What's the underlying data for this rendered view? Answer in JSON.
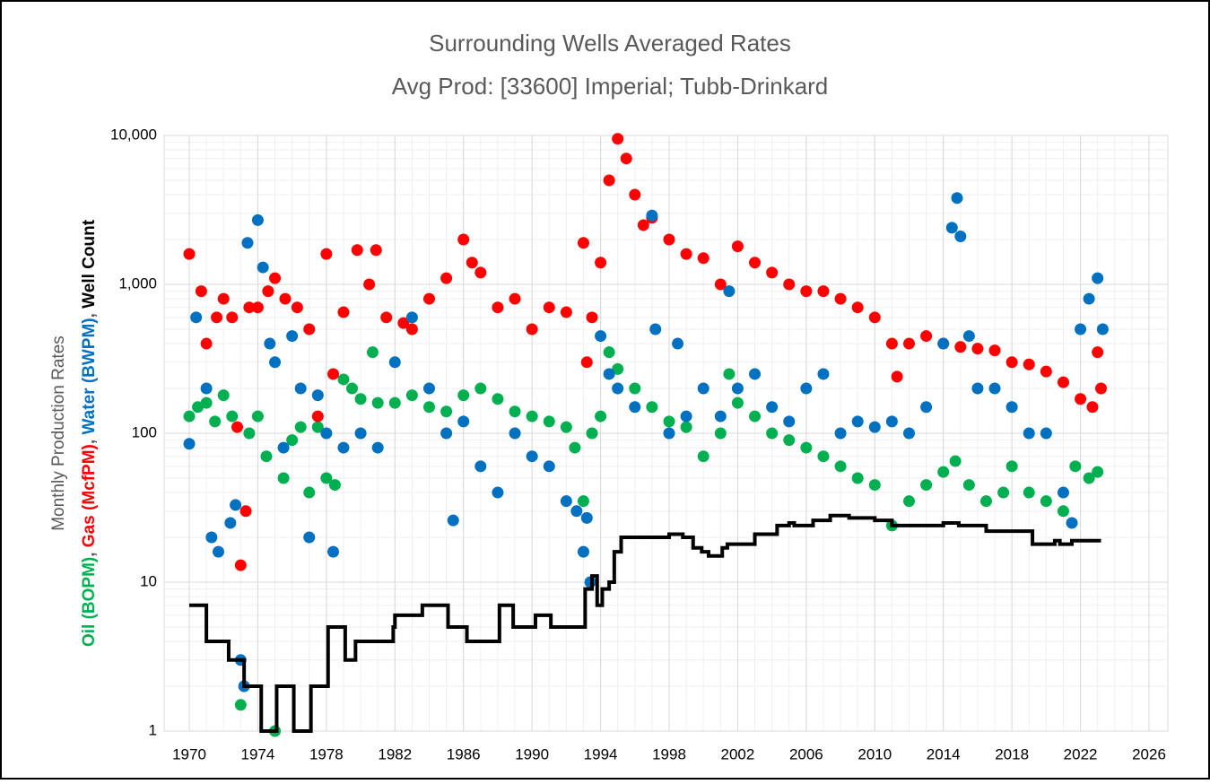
{
  "chart_data": {
    "type": "scatter",
    "title": "Surrounding Wells Averaged Rates",
    "subtitle": "Avg Prod: [33600] Imperial; Tubb-Drinkard",
    "y_label": "Monthly Production Rates",
    "y_label_separator": ", ",
    "xlim": [
      1970,
      2026
    ],
    "xticks": [
      1970,
      1974,
      1978,
      1982,
      1986,
      1990,
      1994,
      1998,
      2002,
      2006,
      2010,
      2014,
      2018,
      2022,
      2026
    ],
    "ylim": [
      1,
      10000
    ],
    "log_y": true,
    "grid": true,
    "yticks": [
      {
        "value": 1,
        "label": "1"
      },
      {
        "value": 10,
        "label": "10"
      },
      {
        "value": 100,
        "label": "100"
      },
      {
        "value": 1000,
        "label": "1,000"
      },
      {
        "value": 10000,
        "label": "10,000"
      }
    ],
    "series": [
      {
        "name": "Oil (BOPM)",
        "color": "#00b050",
        "mode": "markers",
        "x": [
          1970,
          1970.5,
          1971,
          1971.5,
          1972,
          1972.5,
          1973,
          1973.5,
          1974,
          1974.5,
          1975,
          1975.5,
          1976,
          1976.5,
          1977,
          1977.5,
          1978,
          1978.5,
          1979,
          1979.5,
          1980,
          1980.7,
          1981,
          1982,
          1983,
          1984,
          1985,
          1986,
          1987,
          1988,
          1989,
          1990,
          1991,
          1992,
          1992.5,
          1993,
          1993.5,
          1994,
          1994.5,
          1995,
          1996,
          1997,
          1998,
          1999,
          2000,
          2001,
          2001.5,
          2002,
          2003,
          2004,
          2005,
          2006,
          2007,
          2008,
          2009,
          2010,
          2011,
          2012,
          2013,
          2014,
          2014.7,
          2015.5,
          2016.5,
          2017.5,
          2018,
          2019,
          2020,
          2021,
          2021.7,
          2022.5,
          2023
        ],
        "values": [
          130,
          150,
          160,
          120,
          180,
          130,
          1.5,
          100,
          130,
          70,
          1,
          50,
          90,
          110,
          40,
          110,
          50,
          45,
          230,
          200,
          170,
          350,
          160,
          160,
          180,
          150,
          140,
          180,
          200,
          170,
          140,
          130,
          120,
          110,
          80,
          35,
          100,
          130,
          350,
          270,
          200,
          150,
          120,
          110,
          70,
          100,
          250,
          160,
          130,
          100,
          90,
          80,
          70,
          60,
          50,
          45,
          24,
          35,
          45,
          55,
          65,
          45,
          35,
          40,
          60,
          40,
          35,
          30,
          60,
          50,
          55
        ]
      },
      {
        "name": "Gas (McfPM)",
        "color": "#ff0000",
        "mode": "markers",
        "x": [
          1970,
          1970.7,
          1971,
          1971.6,
          1972,
          1972.5,
          1972.8,
          1973,
          1973.3,
          1973.5,
          1974,
          1974.6,
          1975,
          1975.6,
          1976.3,
          1977,
          1977.5,
          1978,
          1978.4,
          1979,
          1979.8,
          1980.5,
          1980.9,
          1981.5,
          1982.5,
          1983,
          1984,
          1985,
          1986,
          1986.5,
          1987,
          1988,
          1989,
          1990,
          1991,
          1992,
          1993,
          1993.2,
          1993.5,
          1994,
          1994.5,
          1995,
          1995.5,
          1996,
          1996.5,
          1997,
          1998,
          1999,
          2000,
          2001,
          2002,
          2003,
          2004,
          2005,
          2006,
          2007,
          2008,
          2009,
          2010,
          2011,
          2011.3,
          2012,
          2013,
          2014,
          2015,
          2016,
          2017,
          2018,
          2019,
          2020,
          2021,
          2022,
          2022.7,
          2023,
          2023.2
        ],
        "values": [
          1600,
          900,
          400,
          600,
          800,
          600,
          110,
          13,
          30,
          700,
          700,
          900,
          1100,
          800,
          700,
          500,
          130,
          1600,
          250,
          650,
          1700,
          1000,
          1700,
          600,
          550,
          500,
          800,
          1100,
          2000,
          1400,
          1200,
          700,
          800,
          500,
          700,
          650,
          1900,
          300,
          600,
          1400,
          5000,
          9500,
          7000,
          4000,
          2500,
          2800,
          2000,
          1600,
          1500,
          1000,
          1800,
          1400,
          1200,
          1000,
          900,
          900,
          800,
          700,
          600,
          400,
          240,
          400,
          450,
          400,
          380,
          370,
          360,
          300,
          290,
          260,
          220,
          170,
          150,
          350,
          200
        ]
      },
      {
        "name": "Water (BWPM)",
        "color": "#0070c0",
        "mode": "markers",
        "x": [
          1970,
          1970.4,
          1971,
          1971.3,
          1971.7,
          1972.4,
          1972.7,
          1973,
          1973.2,
          1973.4,
          1974,
          1974.3,
          1974.7,
          1975,
          1975.5,
          1976,
          1976.5,
          1977,
          1977.5,
          1978,
          1978.4,
          1979,
          1980,
          1981,
          1982,
          1983,
          1984,
          1985,
          1985.4,
          1986,
          1987,
          1988,
          1989,
          1990,
          1991,
          1992,
          1992.6,
          1993,
          1993.2,
          1993.4,
          1994,
          1994.5,
          1995,
          1996,
          1997,
          1997.2,
          1998,
          1998.5,
          1999,
          2000,
          2001,
          2001.5,
          2002,
          2003,
          2004,
          2005,
          2006,
          2007,
          2008,
          2009,
          2010,
          2011,
          2012,
          2013,
          2014,
          2014.5,
          2014.8,
          2015,
          2015.5,
          2016,
          2017,
          2018,
          2019,
          2020,
          2021,
          2021.5,
          2022,
          2022.5,
          2023,
          2023.3
        ],
        "values": [
          85,
          600,
          200,
          20,
          16,
          25,
          33,
          3,
          2,
          1900,
          2700,
          1300,
          400,
          300,
          80,
          450,
          200,
          20,
          180,
          100,
          16,
          80,
          100,
          80,
          300,
          600,
          200,
          100,
          26,
          120,
          60,
          40,
          100,
          70,
          60,
          35,
          30,
          16,
          27,
          10,
          450,
          250,
          200,
          150,
          2900,
          500,
          100,
          400,
          130,
          200,
          130,
          900,
          200,
          250,
          150,
          120,
          200,
          250,
          100,
          120,
          110,
          120,
          100,
          150,
          400,
          2400,
          3800,
          2100,
          450,
          200,
          200,
          150,
          100,
          100,
          40,
          25,
          500,
          800,
          1100,
          500
        ]
      },
      {
        "name": "Well Count",
        "color": "#000000",
        "mode": "step",
        "x": [
          1970,
          1971,
          1972.3,
          1973.2,
          1974.2,
          1975.1,
          1976.1,
          1977.1,
          1978.1,
          1979.1,
          1979.7,
          1981.9,
          1982,
          1983.2,
          1983.6,
          1985.1,
          1986.2,
          1988.1,
          1988.9,
          1990.2,
          1991.1,
          1993.1,
          1993.5,
          1993.8,
          1994.1,
          1994.5,
          1994.8,
          1995.2,
          1998,
          1998.8,
          1999.4,
          1999.9,
          2000.3,
          2001.1,
          2001.4,
          2003,
          2004.3,
          2005,
          2005.3,
          2006.4,
          2007.4,
          2008.5,
          2010,
          2011,
          2014,
          2014.9,
          2016.5,
          2019.2,
          2020.5,
          2020.8,
          2021.5,
          2023.2
        ],
        "values": [
          7,
          4,
          3,
          2,
          1,
          2,
          1,
          2,
          5,
          3,
          4,
          5,
          6,
          6,
          7,
          5,
          4,
          7,
          5,
          6,
          5,
          9,
          11,
          7,
          9,
          10,
          16,
          20,
          21,
          20,
          17,
          16,
          15,
          17,
          18,
          21,
          24,
          25,
          24,
          26,
          28,
          27,
          26,
          24,
          25,
          24,
          22,
          18,
          19,
          18,
          19,
          19
        ]
      }
    ]
  }
}
